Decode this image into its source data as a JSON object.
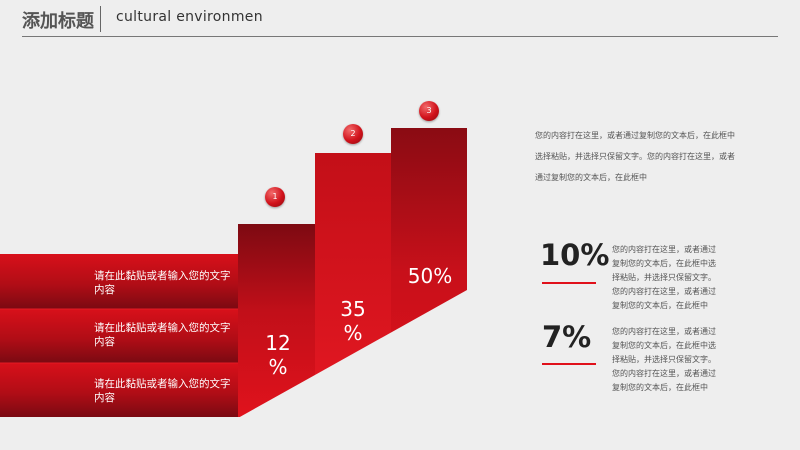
{
  "header": {
    "title": "添加标题",
    "subtitle": "cultural environmen"
  },
  "bars": [
    {
      "label": "请在此黏贴或者输入您的文字内容"
    },
    {
      "label": "请在此黏贴或者输入您的文字内容"
    },
    {
      "label": "请在此黏贴或者输入您的文字内容"
    }
  ],
  "steps": [
    {
      "number": "1",
      "value_line1": "12",
      "value_line2": "%"
    },
    {
      "number": "2",
      "value_line1": "35",
      "value_line2": "%"
    },
    {
      "number": "3",
      "value_line1": "50%",
      "value_line2": ""
    }
  ],
  "description_top": "您的内容打在这里，或者通过复制您的文本后，在此框中选择粘贴，并选择只保留文字。您的内容打在这里，或者通过复制您的文本后，在此框中",
  "stats": [
    {
      "value": "10%",
      "description": "您的内容打在这里，或者通过复制您的文本后，在此框中选择粘贴，并选择只保留文字。您的内容打在这里，或者通过复制您的文本后，在此框中"
    },
    {
      "value": "7%",
      "description": "您的内容打在这里，或者通过复制您的文本后，在此框中选择粘贴，并选择只保留文字。您的内容打在这里，或者通过复制您的文本后，在此框中"
    }
  ],
  "colors": {
    "accent": "#e0101a",
    "dark_red": "#7d0a12",
    "background": "#eeeeee"
  }
}
